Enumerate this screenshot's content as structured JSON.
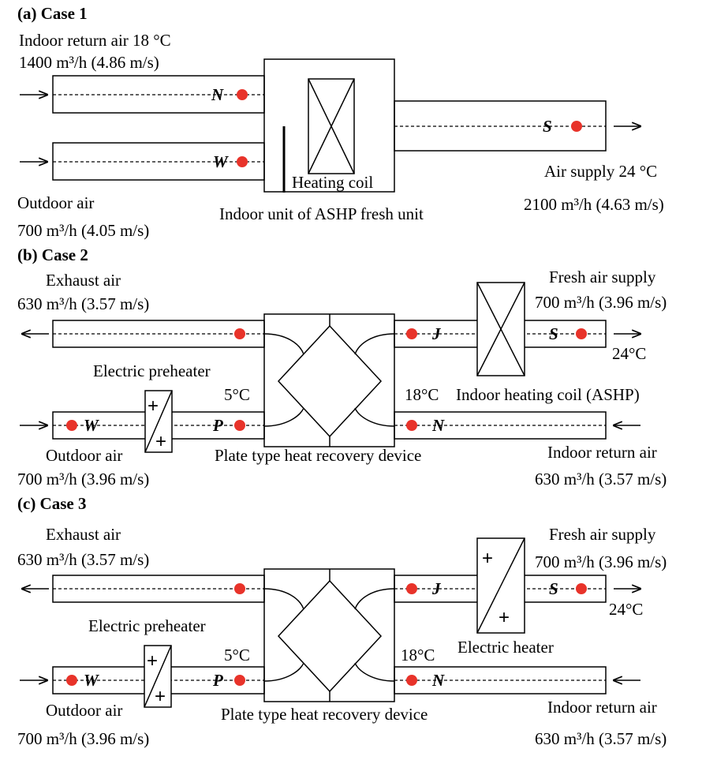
{
  "case1": {
    "title": "(a) Case 1",
    "return_air_label": "Indoor return air 18 °C",
    "return_air_flow": "1400 m³/h (4.86 m/s)",
    "point_n": "N",
    "point_w": "W",
    "point_s": "S",
    "heating_coil": "Heating coil",
    "air_supply_label": "Air supply 24 °C",
    "air_supply_flow": "2100 m³/h (4.63 m/s)",
    "outdoor_air_label": "Outdoor air",
    "outdoor_air_flow": "700 m³/h (4.05 m/s)",
    "unit_label": "Indoor unit of ASHP fresh unit"
  },
  "case2": {
    "title": "(b) Case 2",
    "exhaust_label": "Exhaust air",
    "exhaust_flow": "630 m³/h (3.57 m/s)",
    "fresh_supply_label": "Fresh air supply",
    "fresh_supply_flow": "700 m³/h (3.96 m/s)",
    "supply_temp": "24°C",
    "preheater_label": "Electric preheater",
    "temp_p": "5°C",
    "temp_n": "18°C",
    "coil_label": "Indoor heating coil (ASHP)",
    "outdoor_air_label": "Outdoor air",
    "outdoor_air_flow": "700 m³/h (3.96 m/s)",
    "device_label": "Plate type heat recovery device",
    "return_air_label": "Indoor return air",
    "return_air_flow": "630 m³/h (3.57 m/s)",
    "point_w": "W",
    "point_p": "P",
    "point_j": "J",
    "point_s": "S",
    "point_n": "N"
  },
  "case3": {
    "title": "(c) Case 3",
    "exhaust_label": "Exhaust air",
    "exhaust_flow": "630 m³/h (3.57 m/s)",
    "fresh_supply_label": "Fresh air supply",
    "fresh_supply_flow": "700 m³/h (3.96 m/s)",
    "supply_temp": "24°C",
    "preheater_label": "Electric preheater",
    "temp_p": "5°C",
    "temp_n": "18°C",
    "heater_label": "Electric heater",
    "outdoor_air_label": "Outdoor air",
    "outdoor_air_flow": "700 m³/h (3.96 m/s)",
    "device_label": "Plate type heat recovery device",
    "return_air_label": "Indoor return air",
    "return_air_flow": "630 m³/h (3.57 m/s)",
    "point_w": "W",
    "point_p": "P",
    "point_j": "J",
    "point_s": "S",
    "point_n": "N"
  },
  "colors": {
    "measurement_point": "#e8332a",
    "line": "#000000"
  }
}
